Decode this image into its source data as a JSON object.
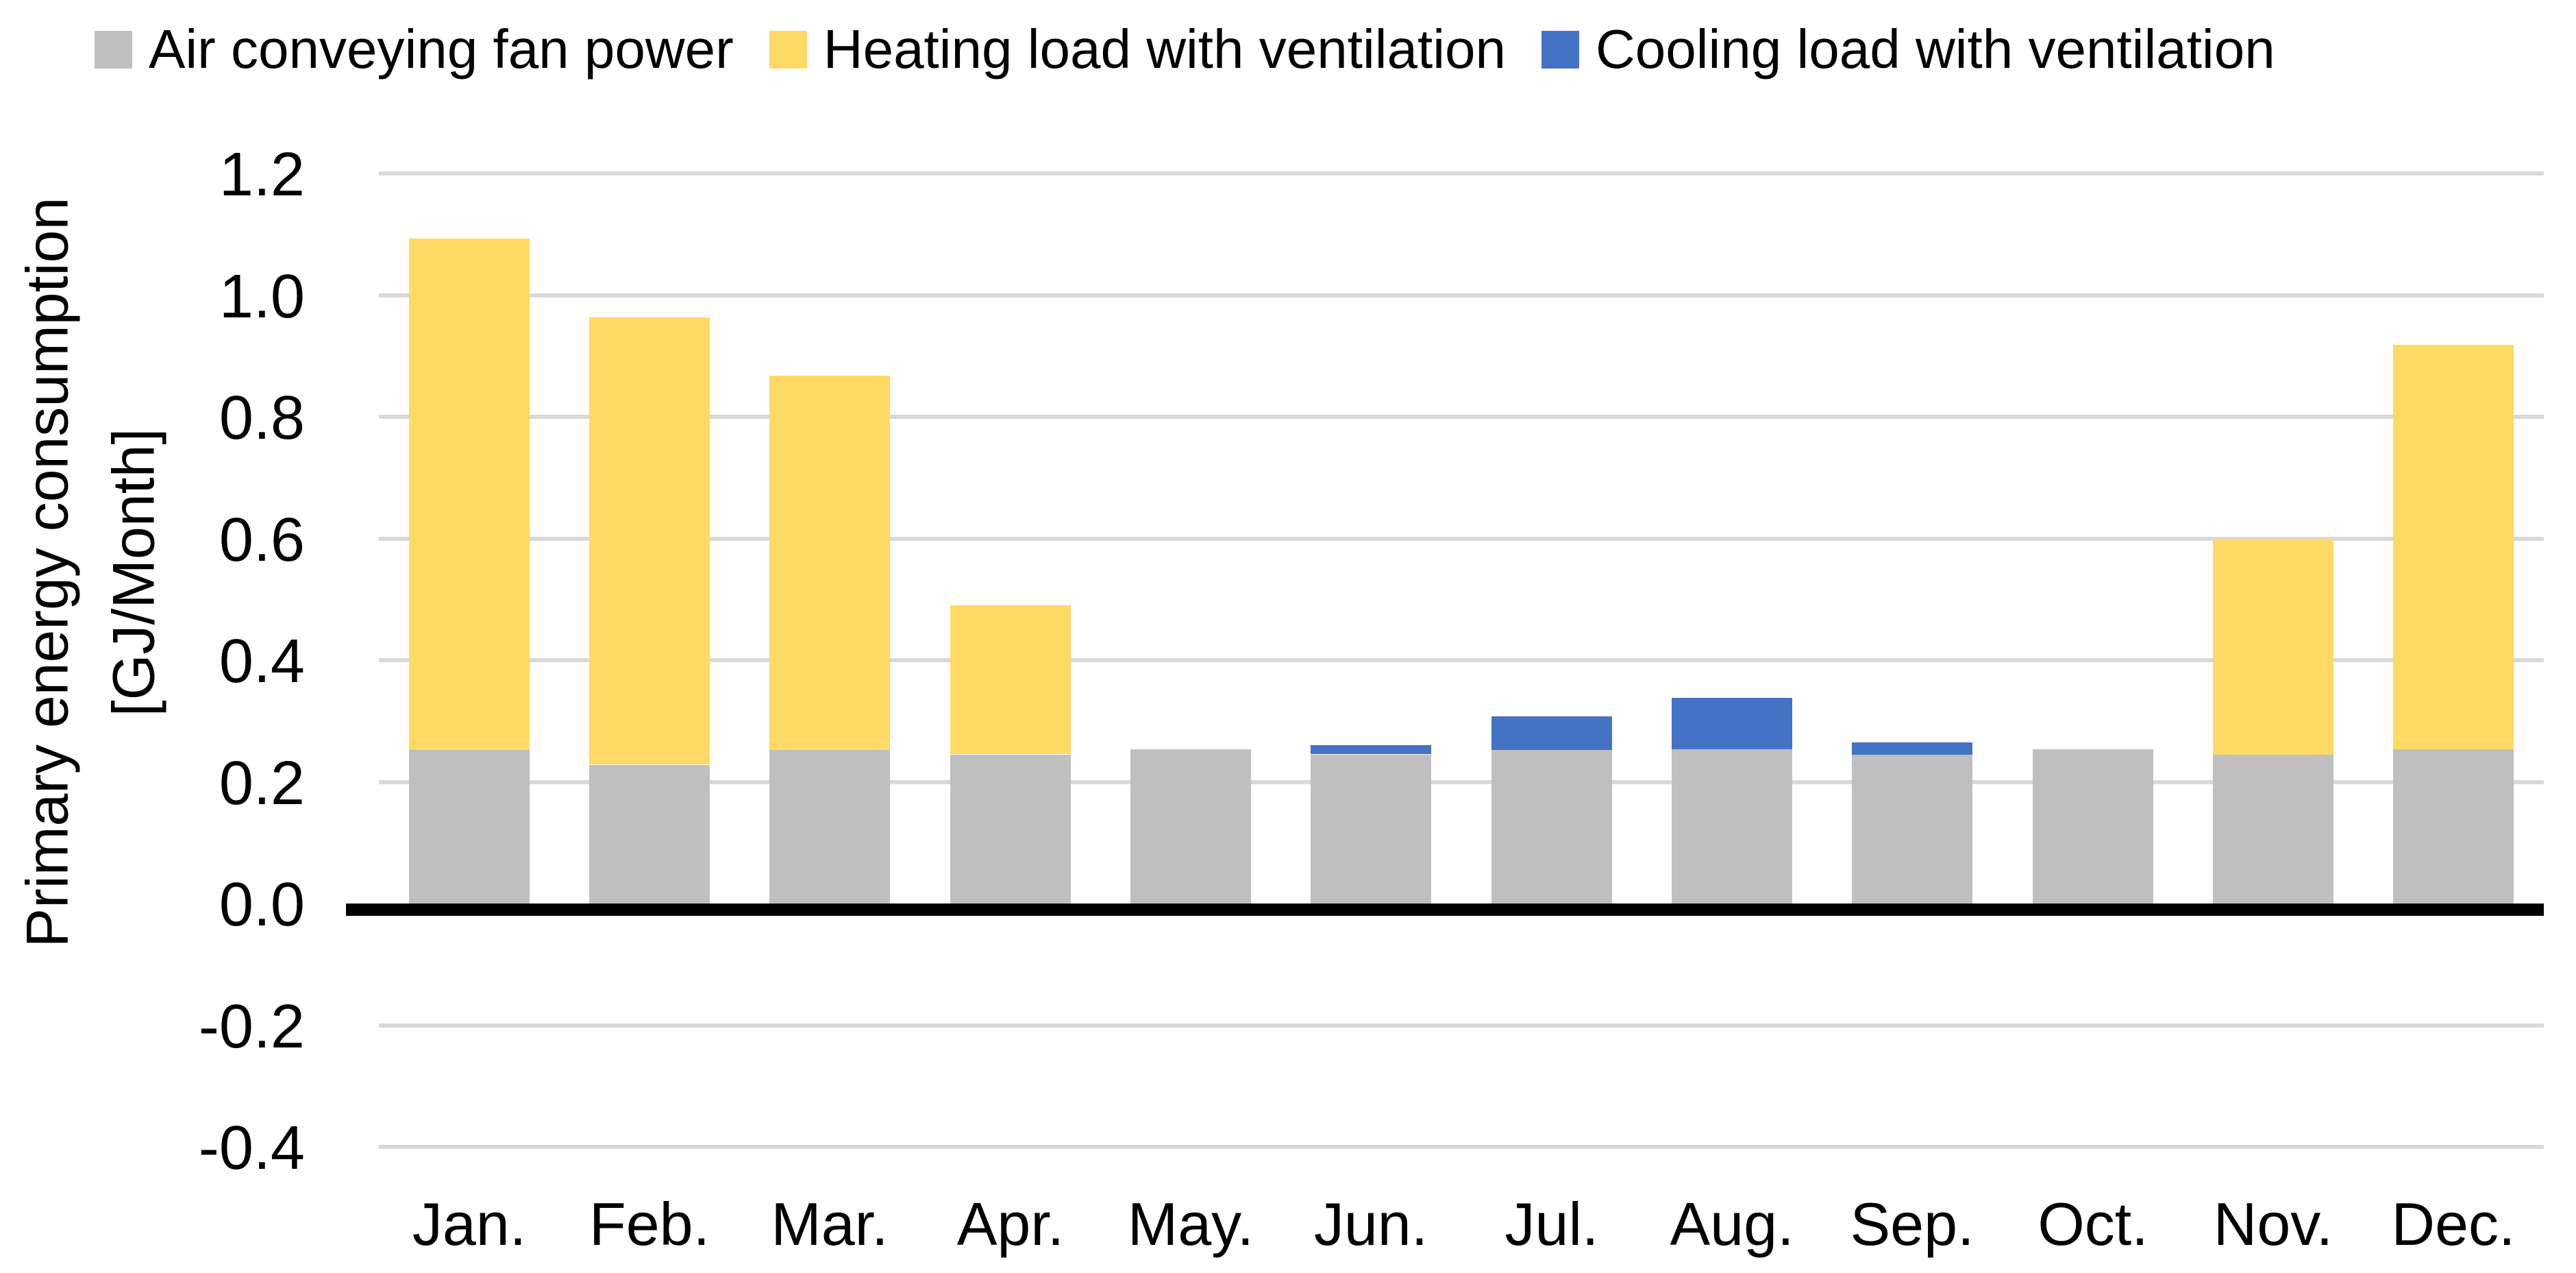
{
  "chart_data": {
    "type": "bar",
    "stacked": true,
    "title": "",
    "ylabel_line1": "Primary energy consumption",
    "ylabel_line2": "[GJ/Month]",
    "xlabel": "",
    "ylim": [
      -0.4,
      1.2
    ],
    "ytick_labels": [
      "1.2",
      "1.0",
      "0.8",
      "0.6",
      "0.4",
      "0.2",
      "0.0",
      "-0.2",
      "-0.4"
    ],
    "grid": true,
    "legend_position": "top",
    "categories": [
      "Jan.",
      "Feb.",
      "Mar.",
      "Apr.",
      "May.",
      "Jun.",
      "Jul.",
      "Aug.",
      "Sep.",
      "Oct.",
      "Nov.",
      "Dec."
    ],
    "series": [
      {
        "name": "Air conveying fan power",
        "color": "#BFBFBF",
        "values": [
          0.253,
          0.228,
          0.253,
          0.245,
          0.253,
          0.245,
          0.253,
          0.253,
          0.245,
          0.253,
          0.245,
          0.253
        ]
      },
      {
        "name": "Heating load with ventilation",
        "color": "#FFD966",
        "values": [
          0.84,
          0.735,
          0.615,
          0.245,
          0,
          0,
          0,
          0,
          0,
          0,
          0.355,
          0.665
        ]
      },
      {
        "name": "Cooling load with ventilation",
        "color": "#4472C4",
        "values": [
          0,
          0,
          0,
          0,
          0,
          0.015,
          0.055,
          0.085,
          0.02,
          0,
          0,
          0
        ]
      }
    ],
    "colors": {
      "gridline": "#D9D9D9",
      "zero_axis": "#000000",
      "text": "#000000",
      "background": "#FFFFFF"
    }
  }
}
